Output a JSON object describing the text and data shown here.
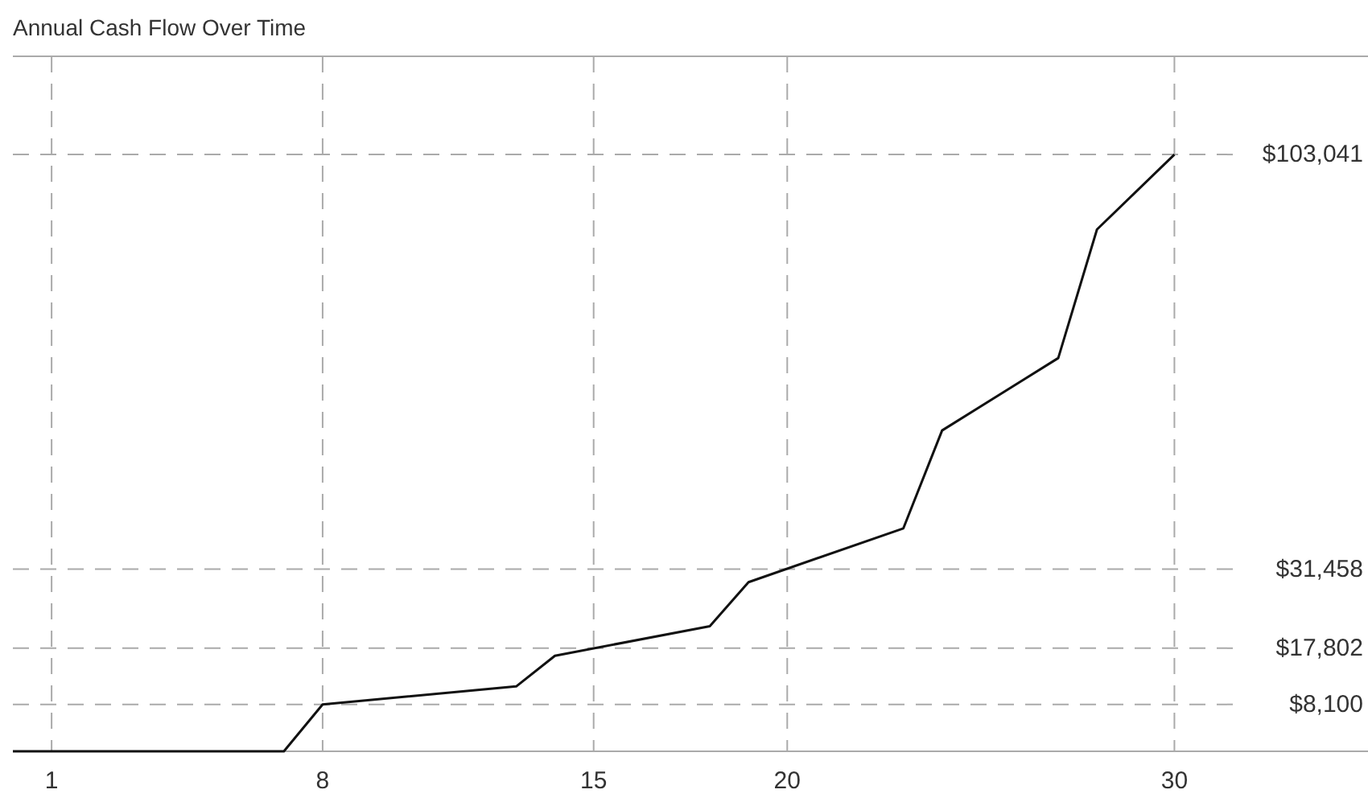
{
  "chart_data": {
    "type": "line",
    "title": "Annual Cash Flow Over Time",
    "x": [
      0,
      7,
      8,
      13,
      14,
      18,
      19,
      23,
      24,
      27,
      28,
      30
    ],
    "series": [
      {
        "color": "#111111",
        "values": [
          0,
          0,
          8100,
          11200,
          16500,
          21600,
          29200,
          38500,
          55400,
          67900,
          90100,
          103041
        ]
      }
    ],
    "xlim": [
      0,
      35
    ],
    "xticks": [
      1,
      8,
      15,
      20,
      30
    ],
    "ylim": [
      0,
      120000
    ],
    "yticks": [
      {
        "value": 8100,
        "label": "$8,100"
      },
      {
        "value": 17802,
        "label": "$17,802"
      },
      {
        "value": 31458,
        "label": "$31,458"
      },
      {
        "value": 103041,
        "label": "$103,041"
      }
    ],
    "grid": true,
    "marker": "none",
    "line_style": "solid"
  }
}
